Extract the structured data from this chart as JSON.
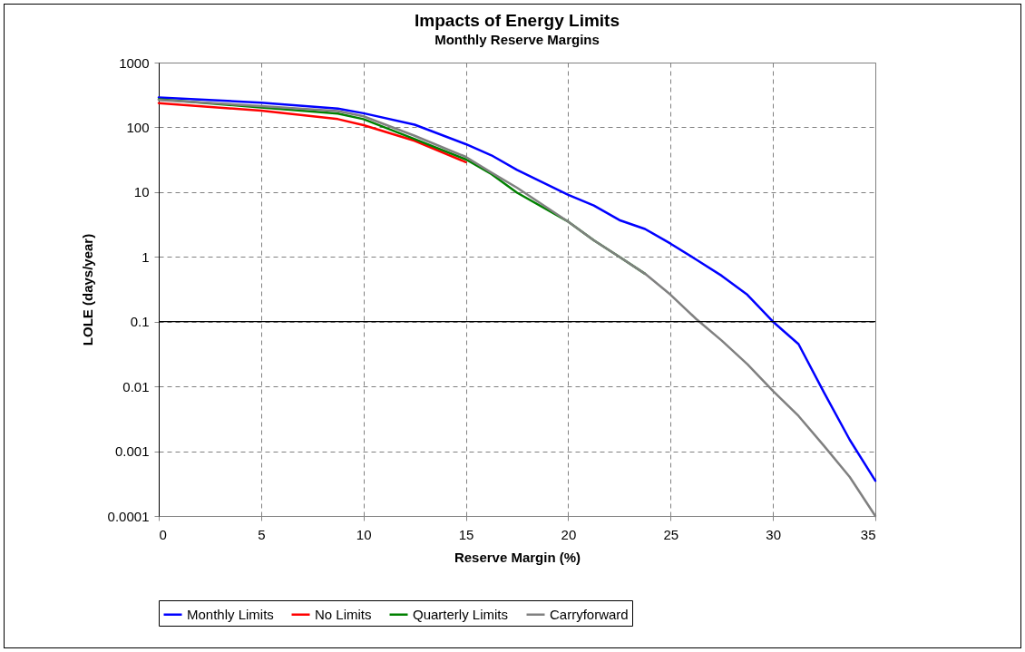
{
  "chart_data": {
    "type": "line",
    "title": "Impacts of Energy Limits",
    "subtitle": "Monthly Reserve Margins",
    "xlabel": "Reserve Margin (%)",
    "ylabel": "LOLE (days/year)",
    "xlim": [
      0,
      35
    ],
    "xticks": [
      0,
      5,
      10,
      15,
      20,
      25,
      30,
      35
    ],
    "ylim": [
      0.0001,
      1000
    ],
    "yticks": [
      0.0001,
      0.001,
      0.01,
      0.1,
      1,
      10,
      100,
      1000
    ],
    "log": true,
    "grid": true,
    "legend": "bottom",
    "ref_lines": [
      {
        "axis": "y",
        "value": 0.1,
        "color": "#000000"
      }
    ],
    "series": [
      {
        "name": "Monthly Limits",
        "color": "#0000ff",
        "x": [
          0,
          5,
          8.75,
          10,
          12.5,
          15,
          16.25,
          17.5,
          20,
          21.25,
          22.5,
          23.75,
          25,
          26.25,
          27.5,
          28.75,
          30,
          31.25,
          32.5,
          33.75,
          35
        ],
        "values": [
          290,
          240,
          195,
          165,
          110,
          55,
          37,
          22,
          9.1,
          6.2,
          3.7,
          2.7,
          1.6,
          0.91,
          0.51,
          0.26,
          0.1,
          0.045,
          0.008,
          0.0015,
          0.00035
        ]
      },
      {
        "name": "No Limits",
        "color": "#ff0000",
        "x": [
          0,
          5,
          8.75,
          10,
          12.5,
          15
        ],
        "values": [
          237,
          181,
          134,
          108,
          62,
          29
        ]
      },
      {
        "name": "Quarterly Limits",
        "color": "#008000",
        "x": [
          0,
          5,
          8.75,
          10,
          12.5,
          15,
          16.25,
          17.5,
          20,
          21.25,
          22.5,
          23.75
        ],
        "values": [
          270,
          203,
          163,
          134,
          66,
          32,
          19,
          9.8,
          3.5,
          1.8,
          1.0,
          0.55
        ]
      },
      {
        "name": "Carryforward",
        "color": "#808080",
        "x": [
          0,
          5,
          8.75,
          10,
          12.5,
          15,
          16.25,
          17.5,
          20,
          21.25,
          22.5,
          23.75,
          25,
          26.25,
          27.5,
          28.75,
          30,
          31.25,
          32.5,
          33.75,
          35
        ],
        "values": [
          265,
          213,
          178,
          148,
          74,
          35,
          20,
          11.7,
          3.5,
          1.8,
          1.0,
          0.55,
          0.26,
          0.11,
          0.051,
          0.022,
          0.0085,
          0.0035,
          0.0012,
          0.0004,
          0.0001
        ]
      }
    ]
  }
}
